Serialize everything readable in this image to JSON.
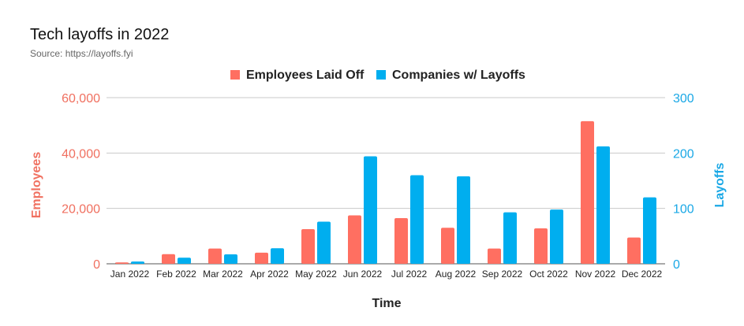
{
  "header": {
    "title": "Tech layoffs in 2022",
    "source": "Source: https://layoffs.fyi"
  },
  "colors": {
    "employees": "#ff6f61",
    "companies": "#00aeef",
    "left_axis": "#f07060",
    "right_axis": "#1aa8e6",
    "grid": "#c8c8c8"
  },
  "chart_data": {
    "type": "bar",
    "title": "Tech layoffs in 2022",
    "subtitle": "Source: https://layoffs.fyi",
    "xlabel": "Time",
    "ylabel": "Employees",
    "y2label": "Layoffs",
    "ylim": [
      0,
      60000
    ],
    "y2lim": [
      0,
      300
    ],
    "yticks": [
      "0",
      "20,000",
      "40,000",
      "60,000"
    ],
    "yticks_values": [
      0,
      20000,
      40000,
      60000
    ],
    "y2ticks": [
      "0",
      "100",
      "200",
      "300"
    ],
    "y2ticks_values": [
      0,
      100,
      200,
      300
    ],
    "grid": true,
    "legend_position": "top-center",
    "categories": [
      "Jan 2022",
      "Feb 2022",
      "Mar 2022",
      "Apr 2022",
      "May 2022",
      "Jun 2022",
      "Jul 2022",
      "Aug 2022",
      "Sep 2022",
      "Oct 2022",
      "Nov 2022",
      "Dec 2022"
    ],
    "series": [
      {
        "name": "Employees Laid Off",
        "axis": "left",
        "values": [
          500,
          3500,
          5500,
          4000,
          12500,
          17500,
          16500,
          13000,
          5500,
          12800,
          51500,
          9500
        ]
      },
      {
        "name": "Companies w/ Layoffs",
        "axis": "right",
        "values": [
          4,
          11,
          17,
          28,
          76,
          194,
          160,
          158,
          93,
          98,
          212,
          120
        ]
      }
    ]
  }
}
